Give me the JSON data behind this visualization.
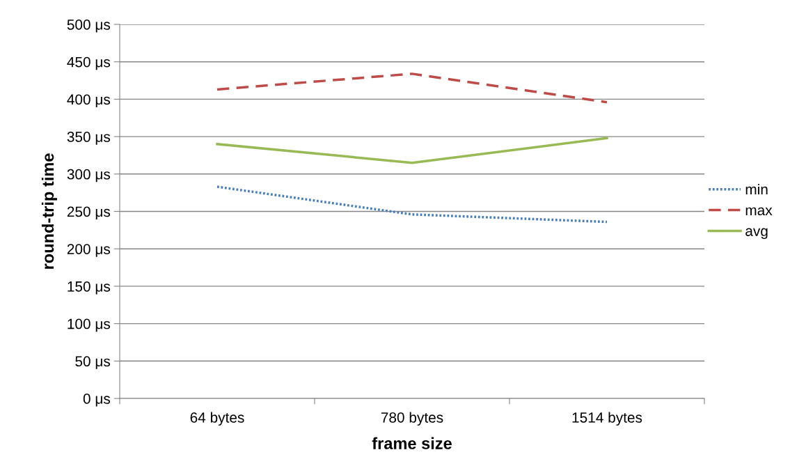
{
  "chart_data": {
    "type": "line",
    "xlabel": "frame size",
    "ylabel": "round-trip time",
    "categories": [
      "64 bytes",
      "780 bytes",
      "1514 bytes"
    ],
    "series": [
      {
        "name": "min",
        "color": "#4a7ebb",
        "line_style": "dotted",
        "values": [
          283,
          246,
          236
        ]
      },
      {
        "name": "max",
        "color": "#be4b48",
        "line_style": "dashed",
        "values": [
          413,
          434,
          396
        ]
      },
      {
        "name": "avg",
        "color": "#98b954",
        "line_style": "solid",
        "values": [
          340,
          315,
          348
        ]
      }
    ],
    "ylim": [
      0,
      500
    ],
    "yticks": [
      {
        "value": 0,
        "label": "0 μs"
      },
      {
        "value": 50,
        "label": "50 μs"
      },
      {
        "value": 100,
        "label": "100 μs"
      },
      {
        "value": 150,
        "label": "150 μs"
      },
      {
        "value": 200,
        "label": "200 μs"
      },
      {
        "value": 250,
        "label": "250 μs"
      },
      {
        "value": 300,
        "label": "300 μs"
      },
      {
        "value": 350,
        "label": "350 μs"
      },
      {
        "value": 400,
        "label": "400 μs"
      },
      {
        "value": 450,
        "label": "450 μs"
      },
      {
        "value": 500,
        "label": "500 μs"
      }
    ],
    "grid": "y",
    "legend": "right",
    "marker": "none"
  }
}
